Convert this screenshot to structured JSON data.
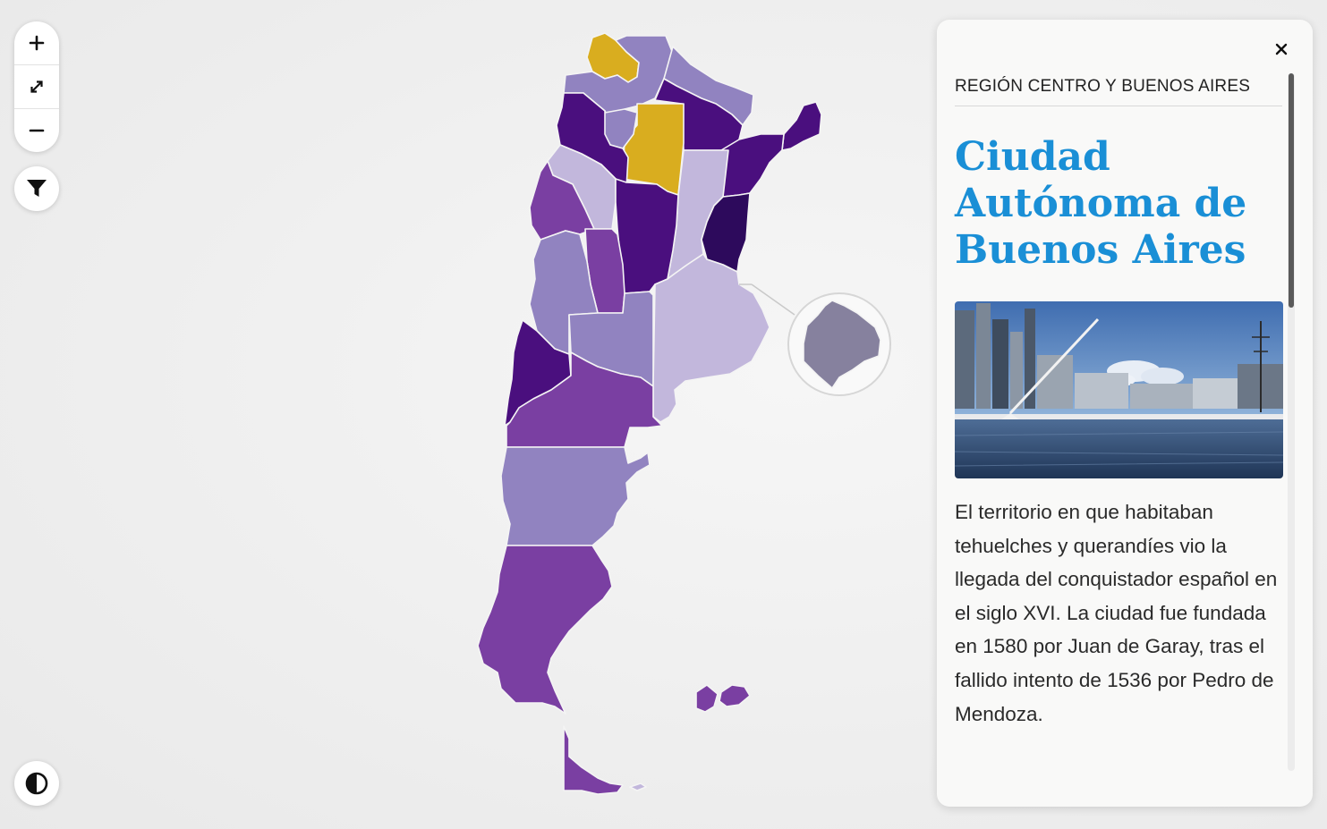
{
  "controls": {
    "zoom_in": "plus-icon",
    "fullscreen": "expand-icon",
    "zoom_out": "minus-icon",
    "filter": "filter-icon",
    "contrast": "contrast-icon"
  },
  "map": {
    "colors": {
      "highlight_gold": "#d9ad1f",
      "purple_darkest": "#2d0a5c",
      "purple_dark": "#4a0f7e",
      "purple_mid": "#7a3fa2",
      "purple_light": "#9183c0",
      "purple_pale": "#c2b7dc",
      "caba_gray": "#86819e"
    },
    "selected_province_color": "#86819e"
  },
  "panel": {
    "region": "REGIÓN CENTRO Y BUENOS AIRES",
    "title": "Ciudad Autónoma de Buenos Aires",
    "description": "El territorio en que habitaban tehuelches y querandíes vio la llegada del conquistador español en el siglo XVI. La ciudad fue fundada en 1580 por Juan de Garay, tras el fallido intento de 1536 por Pedro de Mendoza.",
    "close_icon": "close-icon",
    "title_color": "#1a8fd6"
  }
}
